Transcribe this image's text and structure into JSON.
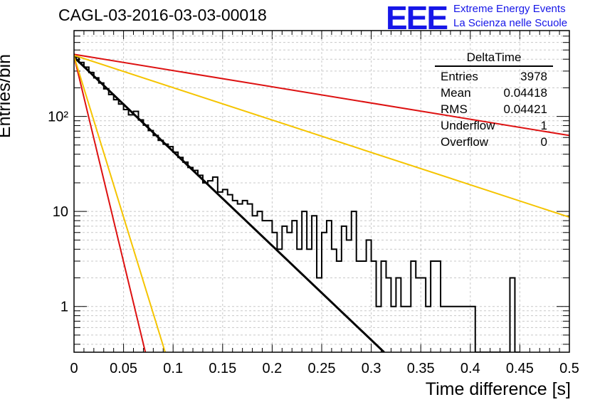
{
  "header": {
    "run_title": "CAGL-03-2016-03-03-00018",
    "logo_text": "EEE",
    "logo_line1": "Extreme Energy Events",
    "logo_line2": "La Scienza nelle Scuole"
  },
  "stats_box": {
    "title": "DeltaTime",
    "rows": [
      {
        "label": "Entries",
        "value": "3978"
      },
      {
        "label": "Mean",
        "value": "0.04418"
      },
      {
        "label": "RMS",
        "value": "0.04421"
      },
      {
        "label": "Underflow",
        "value": "1"
      },
      {
        "label": "Overflow",
        "value": "0"
      }
    ]
  },
  "chart_data": {
    "type": "line",
    "title": "CAGL-03-2016-03-03-00018",
    "xlabel": "Time difference [s]",
    "ylabel": "Entries/bin",
    "xlim": [
      0,
      0.5
    ],
    "ylim": [
      0.33,
      800
    ],
    "yscale": "log",
    "grid": true,
    "x_ticks": [
      "0",
      "0.05",
      "0.1",
      "0.15",
      "0.2",
      "0.25",
      "0.3",
      "0.35",
      "0.4",
      "0.45",
      "0.5"
    ],
    "y_ticks": [
      {
        "value": 1,
        "label": "1"
      },
      {
        "value": 10,
        "label": "10"
      },
      {
        "value": 100,
        "label": "10²"
      }
    ],
    "histogram": {
      "name": "DeltaTime",
      "color": "#000000",
      "bin_width": 0.005,
      "values": [
        420,
        370,
        330,
        290,
        255,
        225,
        195,
        170,
        150,
        135,
        118,
        104,
        113,
        92,
        81,
        71,
        63,
        56,
        51,
        48,
        42,
        37,
        33,
        29,
        27,
        24,
        20,
        21,
        23,
        16,
        17,
        15,
        13,
        12,
        13,
        12,
        9,
        10,
        8,
        8,
        6,
        4,
        7,
        6,
        8,
        4,
        10,
        4,
        9,
        2,
        6,
        8,
        4,
        3,
        7,
        5,
        10,
        3,
        3,
        5,
        3,
        1,
        3,
        2,
        1,
        2,
        1,
        1,
        3,
        2,
        2,
        1,
        3,
        3,
        1,
        1,
        1,
        1,
        1,
        1,
        1,
        0,
        0,
        0,
        0,
        0,
        0,
        0,
        2,
        0
      ]
    },
    "fits": [
      {
        "color": "#000000",
        "x": [
          0,
          0.313
        ],
        "y": [
          420,
          0.33
        ]
      },
      {
        "color": "#dd1111",
        "x": [
          0,
          0.5
        ],
        "y": [
          450,
          63
        ]
      },
      {
        "color": "#f5c400",
        "x": [
          0,
          0.5
        ],
        "y": [
          440,
          8.7
        ]
      },
      {
        "color": "#dd1111",
        "x": [
          0,
          0.072
        ],
        "y": [
          430,
          0.33
        ]
      },
      {
        "color": "#f5c400",
        "x": [
          0,
          0.092
        ],
        "y": [
          430,
          0.33
        ]
      }
    ]
  }
}
